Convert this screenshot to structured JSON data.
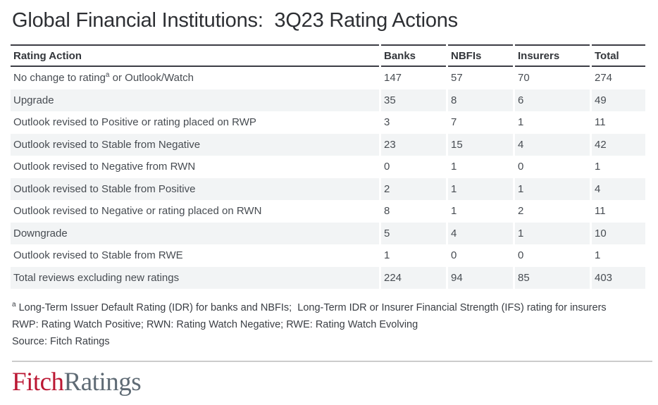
{
  "chart_data": {
    "type": "table",
    "title": "Global Financial Institutions:  3Q23 Rating Actions",
    "columns": [
      "Rating Action",
      "Banks",
      "NBFIs",
      "Insurers",
      "Total"
    ],
    "rows": [
      {
        "label_pre": "No change to rating",
        "sup": "a",
        "label_post": " or Outlook/Watch",
        "values": [
          147,
          57,
          70,
          274
        ]
      },
      {
        "label": "Upgrade",
        "values": [
          35,
          8,
          6,
          49
        ]
      },
      {
        "label": "Outlook revised to Positive or rating placed on RWP",
        "values": [
          3,
          7,
          1,
          11
        ]
      },
      {
        "label": "Outlook revised to Stable from Negative",
        "values": [
          23,
          15,
          4,
          42
        ]
      },
      {
        "label": "Outlook revised to Negative from RWN",
        "values": [
          0,
          1,
          0,
          1
        ]
      },
      {
        "label": "Outlook revised to Stable from Positive",
        "values": [
          2,
          1,
          1,
          4
        ]
      },
      {
        "label": "Outlook revised to Negative or rating placed on RWN",
        "values": [
          8,
          1,
          2,
          11
        ]
      },
      {
        "label": "Downgrade",
        "values": [
          5,
          4,
          1,
          10
        ]
      },
      {
        "label": "Outlook revised to Stable from RWE",
        "values": [
          1,
          0,
          0,
          1
        ]
      },
      {
        "label": "Total reviews excluding new ratings",
        "values": [
          224,
          94,
          85,
          403
        ]
      }
    ],
    "footnotes": {
      "sup": "a",
      "line1": " Long-Term Issuer Default Rating (IDR) for banks and NBFIs;  Long-Term IDR or Insurer Financial Strength (IFS) rating for insurers",
      "line2": "RWP: Rating Watch Positive; RWN: Rating Watch Negative; RWE: Rating Watch Evolving",
      "line3": "Source: Fitch Ratings"
    }
  },
  "logo": {
    "part1": "Fitch",
    "part2": "Ratings"
  },
  "colors": {
    "accent_red": "#bb1733",
    "logo_gray": "#5f6b75",
    "row_shade": "#f2f4f5",
    "border_dark": "#3c3d45"
  }
}
